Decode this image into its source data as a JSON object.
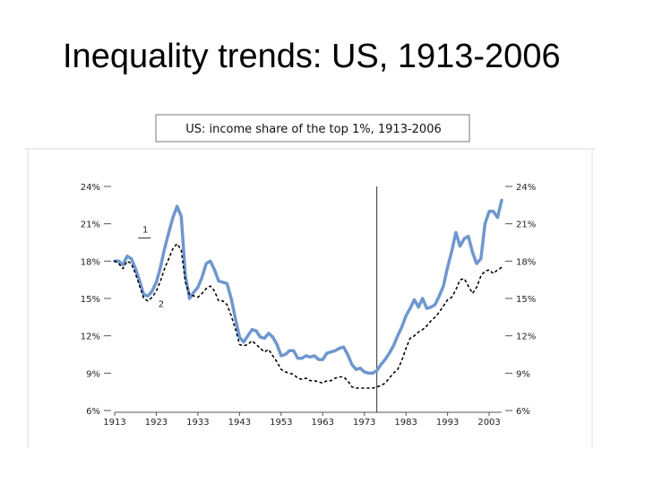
{
  "slide": {
    "title": "Inequality trends: US, 1913-2006"
  },
  "chart_data": {
    "type": "line",
    "title": "US: income share of the top 1%, 1913-2006",
    "xlabel": "",
    "ylabel": "",
    "xlim": [
      1913,
      2006
    ],
    "ylim": [
      6,
      24
    ],
    "x_ticks": [
      1913,
      1923,
      1933,
      1943,
      1953,
      1963,
      1973,
      1983,
      1993,
      2003
    ],
    "y_ticks": [
      6,
      9,
      12,
      15,
      18,
      21,
      24
    ],
    "y_tick_suffix": "%",
    "grid": false,
    "vertical_marker_x": 1976,
    "series": [
      {
        "name": "1",
        "style": "solid",
        "color": "#6f97cf",
        "x": [
          1913,
          1914,
          1915,
          1916,
          1917,
          1918,
          1919,
          1920,
          1921,
          1922,
          1923,
          1924,
          1925,
          1926,
          1927,
          1928,
          1929,
          1930,
          1931,
          1932,
          1933,
          1934,
          1935,
          1936,
          1937,
          1938,
          1939,
          1940,
          1941,
          1942,
          1943,
          1944,
          1945,
          1946,
          1947,
          1948,
          1949,
          1950,
          1951,
          1952,
          1953,
          1954,
          1955,
          1956,
          1957,
          1958,
          1959,
          1960,
          1961,
          1962,
          1963,
          1964,
          1965,
          1966,
          1967,
          1968,
          1969,
          1970,
          1971,
          1972,
          1973,
          1974,
          1975,
          1976,
          1977,
          1978,
          1979,
          1980,
          1981,
          1982,
          1983,
          1984,
          1985,
          1986,
          1987,
          1988,
          1989,
          1990,
          1991,
          1992,
          1993,
          1994,
          1995,
          1996,
          1997,
          1998,
          1999,
          2000,
          2001,
          2002,
          2003,
          2004,
          2005,
          2006
        ],
        "values": [
          18.0,
          18.0,
          17.7,
          18.4,
          18.2,
          17.4,
          16.4,
          15.3,
          15.2,
          15.6,
          16.3,
          17.5,
          19.0,
          20.3,
          21.5,
          22.4,
          21.6,
          16.8,
          15.0,
          15.5,
          15.9,
          16.7,
          17.8,
          18.0,
          17.3,
          16.4,
          16.3,
          16.2,
          15.0,
          13.4,
          11.9,
          11.5,
          12.0,
          12.5,
          12.4,
          11.9,
          11.8,
          12.2,
          11.9,
          11.3,
          10.4,
          10.5,
          10.8,
          10.8,
          10.2,
          10.2,
          10.4,
          10.3,
          10.4,
          10.1,
          10.1,
          10.6,
          10.7,
          10.8,
          11.0,
          11.1,
          10.5,
          9.7,
          9.3,
          9.4,
          9.1,
          9.0,
          9.0,
          9.2,
          9.7,
          10.1,
          10.6,
          11.2,
          12.0,
          12.7,
          13.6,
          14.2,
          14.9,
          14.3,
          15.0,
          14.2,
          14.3,
          14.5,
          15.2,
          16.0,
          17.5,
          18.8,
          20.3,
          19.2,
          19.8,
          20.0,
          18.7,
          17.8,
          18.2,
          21.0,
          22.0,
          22.0,
          21.5,
          22.9
        ]
      },
      {
        "name": "2",
        "style": "dotted",
        "color": "#000000",
        "x": [
          1913,
          1914,
          1915,
          1916,
          1917,
          1918,
          1919,
          1920,
          1921,
          1922,
          1923,
          1924,
          1925,
          1926,
          1927,
          1928,
          1929,
          1930,
          1931,
          1932,
          1933,
          1934,
          1935,
          1936,
          1937,
          1938,
          1939,
          1940,
          1941,
          1942,
          1943,
          1944,
          1945,
          1946,
          1947,
          1948,
          1949,
          1950,
          1951,
          1952,
          1953,
          1954,
          1955,
          1956,
          1957,
          1958,
          1959,
          1960,
          1961,
          1962,
          1963,
          1964,
          1965,
          1966,
          1967,
          1968,
          1969,
          1970,
          1971,
          1972,
          1973,
          1974,
          1975,
          1976,
          1977,
          1978,
          1979,
          1980,
          1981,
          1982,
          1983,
          1984,
          1985,
          1986,
          1987,
          1988,
          1989,
          1990,
          1991,
          1992,
          1993,
          1994,
          1995,
          1996,
          1997,
          1998,
          1999,
          2000,
          2001,
          2002,
          2003,
          2004,
          2005,
          2006
        ],
        "values": [
          18.0,
          17.8,
          17.4,
          18.0,
          17.8,
          17.0,
          16.0,
          15.0,
          14.8,
          15.1,
          15.6,
          16.4,
          17.4,
          18.2,
          19.0,
          19.4,
          18.9,
          16.3,
          15.3,
          15.2,
          15.1,
          15.4,
          15.8,
          16.0,
          15.6,
          14.8,
          14.8,
          14.5,
          13.6,
          12.6,
          11.3,
          11.2,
          11.3,
          11.6,
          11.3,
          11.0,
          10.7,
          10.9,
          10.4,
          9.9,
          9.3,
          9.1,
          9.0,
          8.9,
          8.6,
          8.5,
          8.6,
          8.4,
          8.4,
          8.3,
          8.2,
          8.4,
          8.4,
          8.6,
          8.7,
          8.7,
          8.4,
          7.9,
          7.8,
          7.8,
          7.8,
          7.8,
          7.8,
          7.9,
          8.0,
          8.2,
          8.6,
          9.0,
          9.3,
          10.0,
          11.0,
          11.8,
          12.0,
          12.3,
          12.5,
          12.8,
          13.2,
          13.5,
          13.9,
          14.4,
          14.9,
          15.1,
          15.7,
          16.5,
          16.6,
          16.0,
          15.4,
          15.9,
          16.8,
          17.2,
          17.3,
          17.0,
          17.3,
          17.5
        ]
      }
    ]
  },
  "colors": {
    "solid_series": "#6f97cf",
    "dotted_series": "#000000",
    "axis": "#444444"
  }
}
